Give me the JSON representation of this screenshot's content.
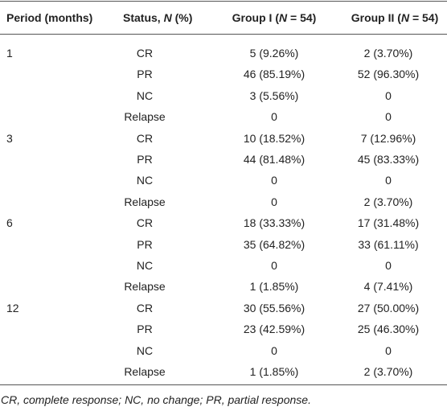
{
  "table": {
    "header": [
      [
        {
          "text": "Period (months)",
          "italic": false
        }
      ],
      [
        {
          "text": "Status, ",
          "italic": false
        },
        {
          "text": "N",
          "italic": true
        },
        {
          "text": " (%)",
          "italic": false
        }
      ],
      [
        {
          "text": "Group I (",
          "italic": false
        },
        {
          "text": "N",
          "italic": true
        },
        {
          "text": " = 54)",
          "italic": false
        }
      ],
      [
        {
          "text": "Group II (",
          "italic": false
        },
        {
          "text": "N",
          "italic": true
        },
        {
          "text": " = 54)",
          "italic": false
        }
      ]
    ],
    "groups": [
      {
        "period": "1",
        "rows": [
          [
            "CR",
            "5 (9.26%)",
            "2 (3.70%)"
          ],
          [
            "PR",
            "46 (85.19%)",
            "52 (96.30%)"
          ],
          [
            "NC",
            "3 (5.56%)",
            "0"
          ],
          [
            "Relapse",
            "0",
            "0"
          ]
        ]
      },
      {
        "period": "3",
        "rows": [
          [
            "CR",
            "10 (18.52%)",
            "7 (12.96%)"
          ],
          [
            "PR",
            "44 (81.48%)",
            "45 (83.33%)"
          ],
          [
            "NC",
            "0",
            "0"
          ],
          [
            "Relapse",
            "0",
            "2 (3.70%)"
          ]
        ]
      },
      {
        "period": "6",
        "rows": [
          [
            "CR",
            "18 (33.33%)",
            "17 (31.48%)"
          ],
          [
            "PR",
            "35 (64.82%)",
            "33 (61.11%)"
          ],
          [
            "NC",
            "0",
            "0"
          ],
          [
            "Relapse",
            "1 (1.85%)",
            "4 (7.41%)"
          ]
        ]
      },
      {
        "period": "12",
        "rows": [
          [
            "CR",
            "30 (55.56%)",
            "27 (50.00%)"
          ],
          [
            "PR",
            "23 (42.59%)",
            "25 (46.30%)"
          ],
          [
            "NC",
            "0",
            "0"
          ],
          [
            "Relapse",
            "1 (1.85%)",
            "2 (3.70%)"
          ]
        ]
      }
    ],
    "footnote": "CR, complete response; NC, no change; PR, partial response."
  }
}
